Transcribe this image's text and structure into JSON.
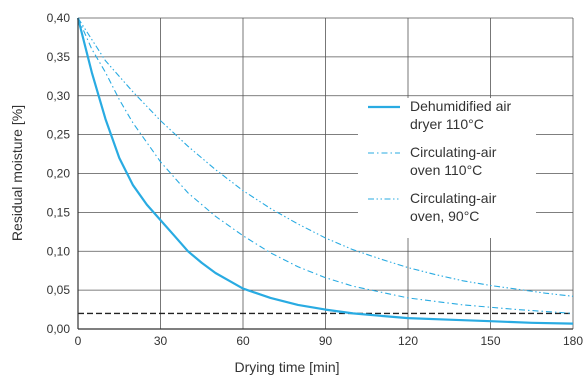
{
  "chart_data": {
    "type": "line",
    "xlabel": "Drying time [min]",
    "ylabel": "Residual moisture [%]",
    "xlim": [
      0,
      180
    ],
    "ylim": [
      0,
      0.4
    ],
    "x_ticks": [
      0,
      30,
      60,
      90,
      120,
      150,
      180
    ],
    "x_tick_labels": [
      "0",
      "30",
      "60",
      "90",
      "120",
      "150",
      "180"
    ],
    "y_ticks": [
      0,
      0.05,
      0.1,
      0.15,
      0.2,
      0.25,
      0.3,
      0.35,
      0.4
    ],
    "y_tick_labels": [
      "0,00",
      "0,05",
      "0,10",
      "0,15",
      "0,20",
      "0,25",
      "0,30",
      "0,35",
      "0,40"
    ],
    "grid": true,
    "legend_position": "right",
    "reference_line": {
      "y": 0.02,
      "style": "dashed",
      "color": "#222222"
    },
    "series": [
      {
        "name_lines": [
          "Dehumidified air",
          "dryer 110°C"
        ],
        "style": "solid",
        "color": "#29abe2",
        "x": [
          0,
          5,
          10,
          15,
          20,
          25,
          30,
          35,
          40,
          45,
          50,
          55,
          60,
          70,
          80,
          90,
          100,
          110,
          120,
          135,
          150,
          165,
          180
        ],
        "y": [
          0.4,
          0.33,
          0.27,
          0.22,
          0.185,
          0.16,
          0.14,
          0.12,
          0.1,
          0.085,
          0.072,
          0.062,
          0.052,
          0.04,
          0.031,
          0.025,
          0.02,
          0.017,
          0.014,
          0.012,
          0.01,
          0.008,
          0.007
        ]
      },
      {
        "name_lines": [
          "Circulating-air",
          "oven 110°C"
        ],
        "style": "dashdot",
        "color": "#29abe2",
        "x": [
          0,
          5,
          10,
          15,
          20,
          30,
          40,
          50,
          60,
          70,
          80,
          90,
          100,
          120,
          140,
          160,
          180
        ],
        "y": [
          0.4,
          0.36,
          0.33,
          0.295,
          0.265,
          0.215,
          0.175,
          0.145,
          0.12,
          0.098,
          0.08,
          0.066,
          0.055,
          0.04,
          0.031,
          0.025,
          0.02
        ]
      },
      {
        "name_lines": [
          "Circulating-air",
          "oven, 90°C"
        ],
        "style": "dashdotdot",
        "color": "#29abe2",
        "x": [
          0,
          10,
          20,
          30,
          40,
          50,
          60,
          70,
          80,
          90,
          100,
          110,
          120,
          130,
          140,
          150,
          160,
          170,
          180
        ],
        "y": [
          0.4,
          0.345,
          0.305,
          0.268,
          0.235,
          0.205,
          0.178,
          0.155,
          0.135,
          0.117,
          0.102,
          0.09,
          0.079,
          0.07,
          0.062,
          0.056,
          0.051,
          0.046,
          0.042
        ]
      }
    ]
  }
}
